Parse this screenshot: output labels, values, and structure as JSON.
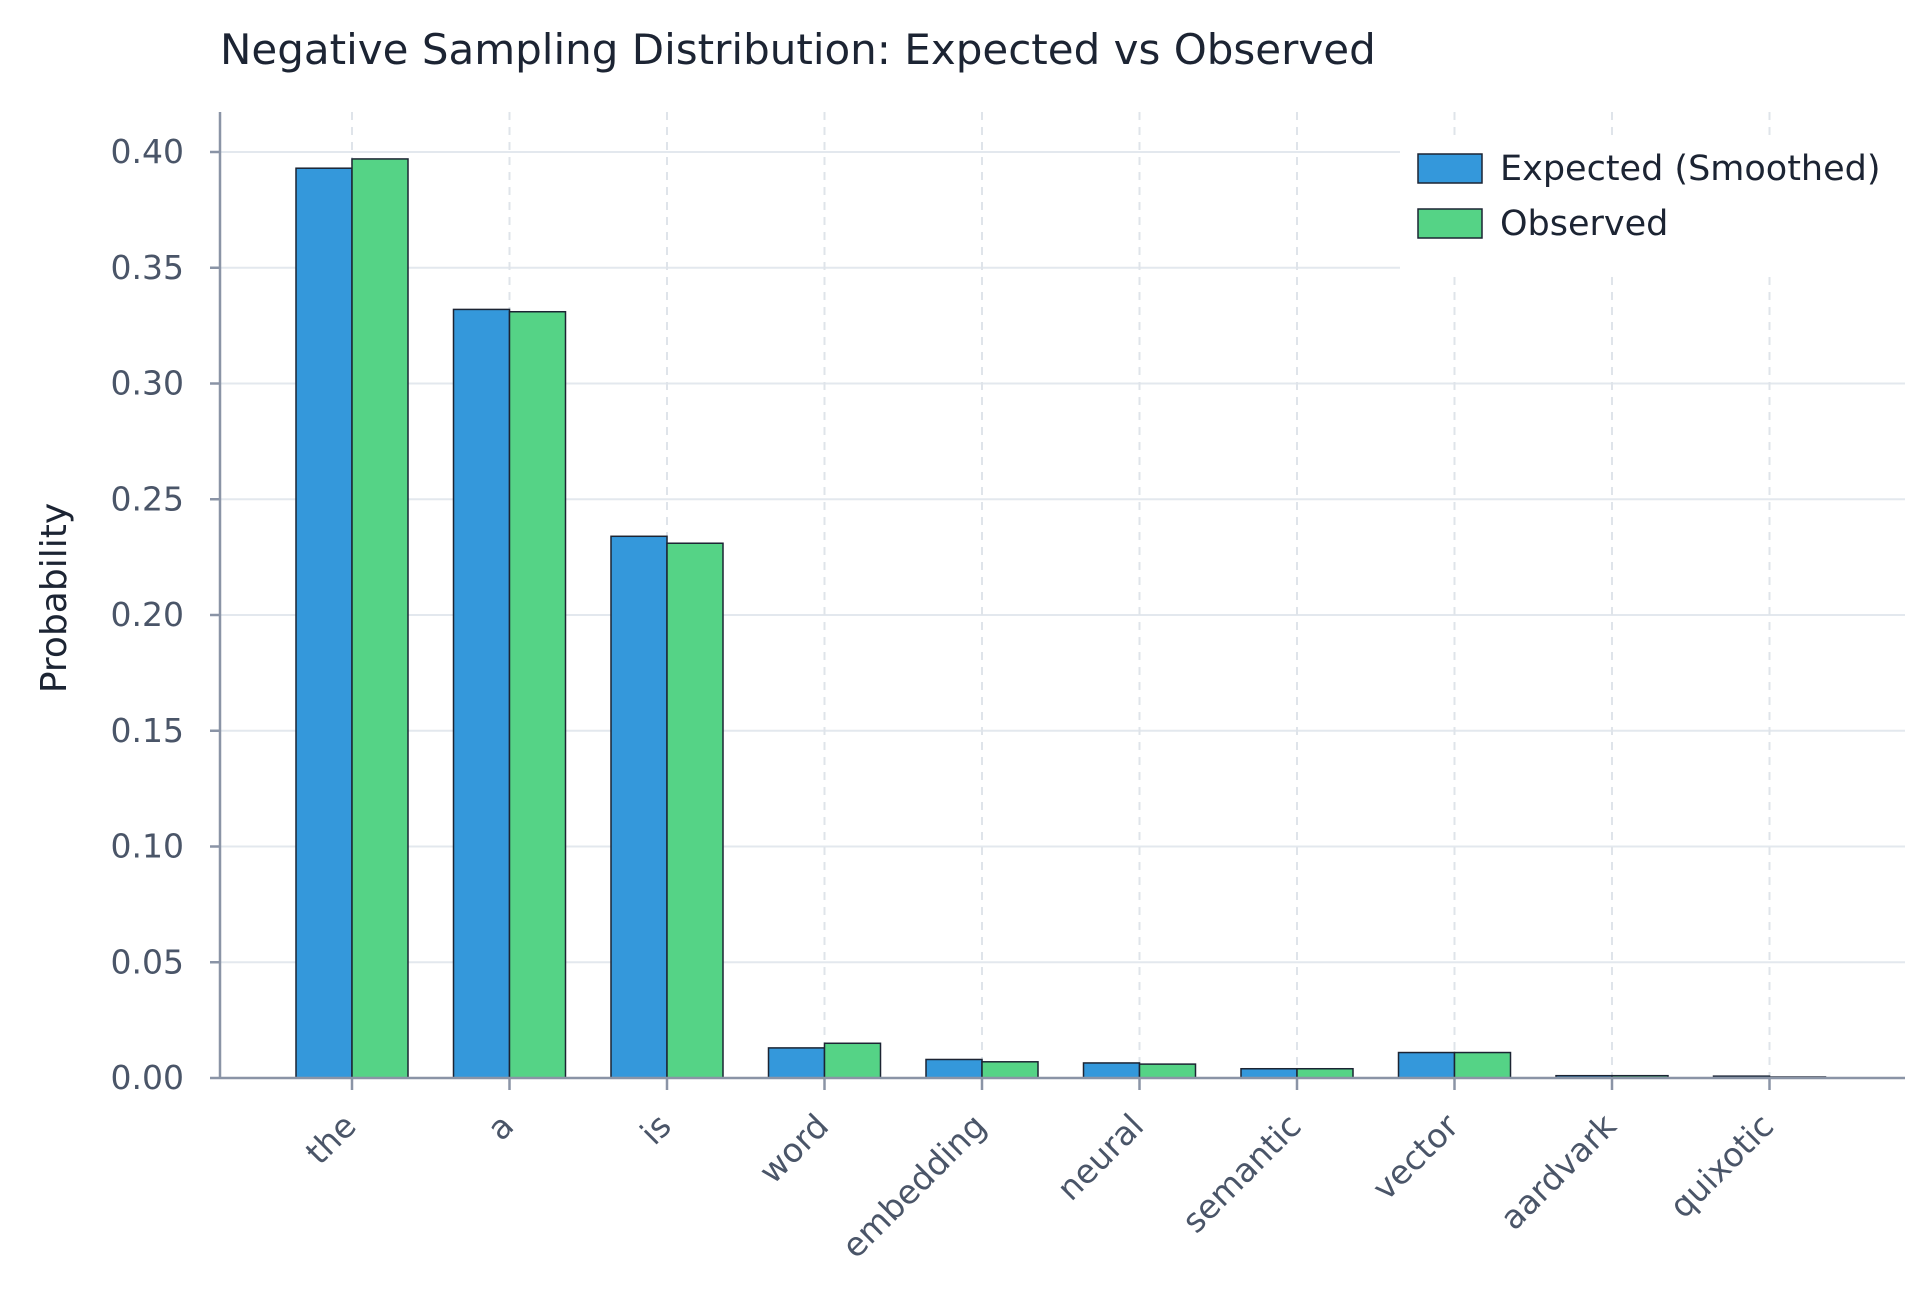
{
  "chart_data": {
    "type": "bar",
    "title": "Negative Sampling Distribution: Expected vs Observed",
    "xlabel": "",
    "ylabel": "Probability",
    "categories": [
      "the",
      "a",
      "is",
      "word",
      "embedding",
      "neural",
      "semantic",
      "vector",
      "aardvark",
      "quixotic"
    ],
    "series": [
      {
        "name": "Expected (Smoothed)",
        "color": "#3498db",
        "values": [
          0.393,
          0.332,
          0.234,
          0.013,
          0.008,
          0.0065,
          0.004,
          0.011,
          0.001,
          0.0008
        ]
      },
      {
        "name": "Observed",
        "color": "#55d386",
        "values": [
          0.397,
          0.331,
          0.231,
          0.015,
          0.007,
          0.006,
          0.004,
          0.011,
          0.001,
          0.0003
        ]
      }
    ],
    "ylim": [
      0,
      0.42
    ],
    "yticks": [
      "0.00",
      "0.05",
      "0.10",
      "0.15",
      "0.20",
      "0.25",
      "0.30",
      "0.35",
      "0.40"
    ],
    "ytick_values": [
      0,
      0.05,
      0.1,
      0.15,
      0.2,
      0.25,
      0.3,
      0.35,
      0.4
    ],
    "grid": true,
    "legend_position": "top-right"
  }
}
